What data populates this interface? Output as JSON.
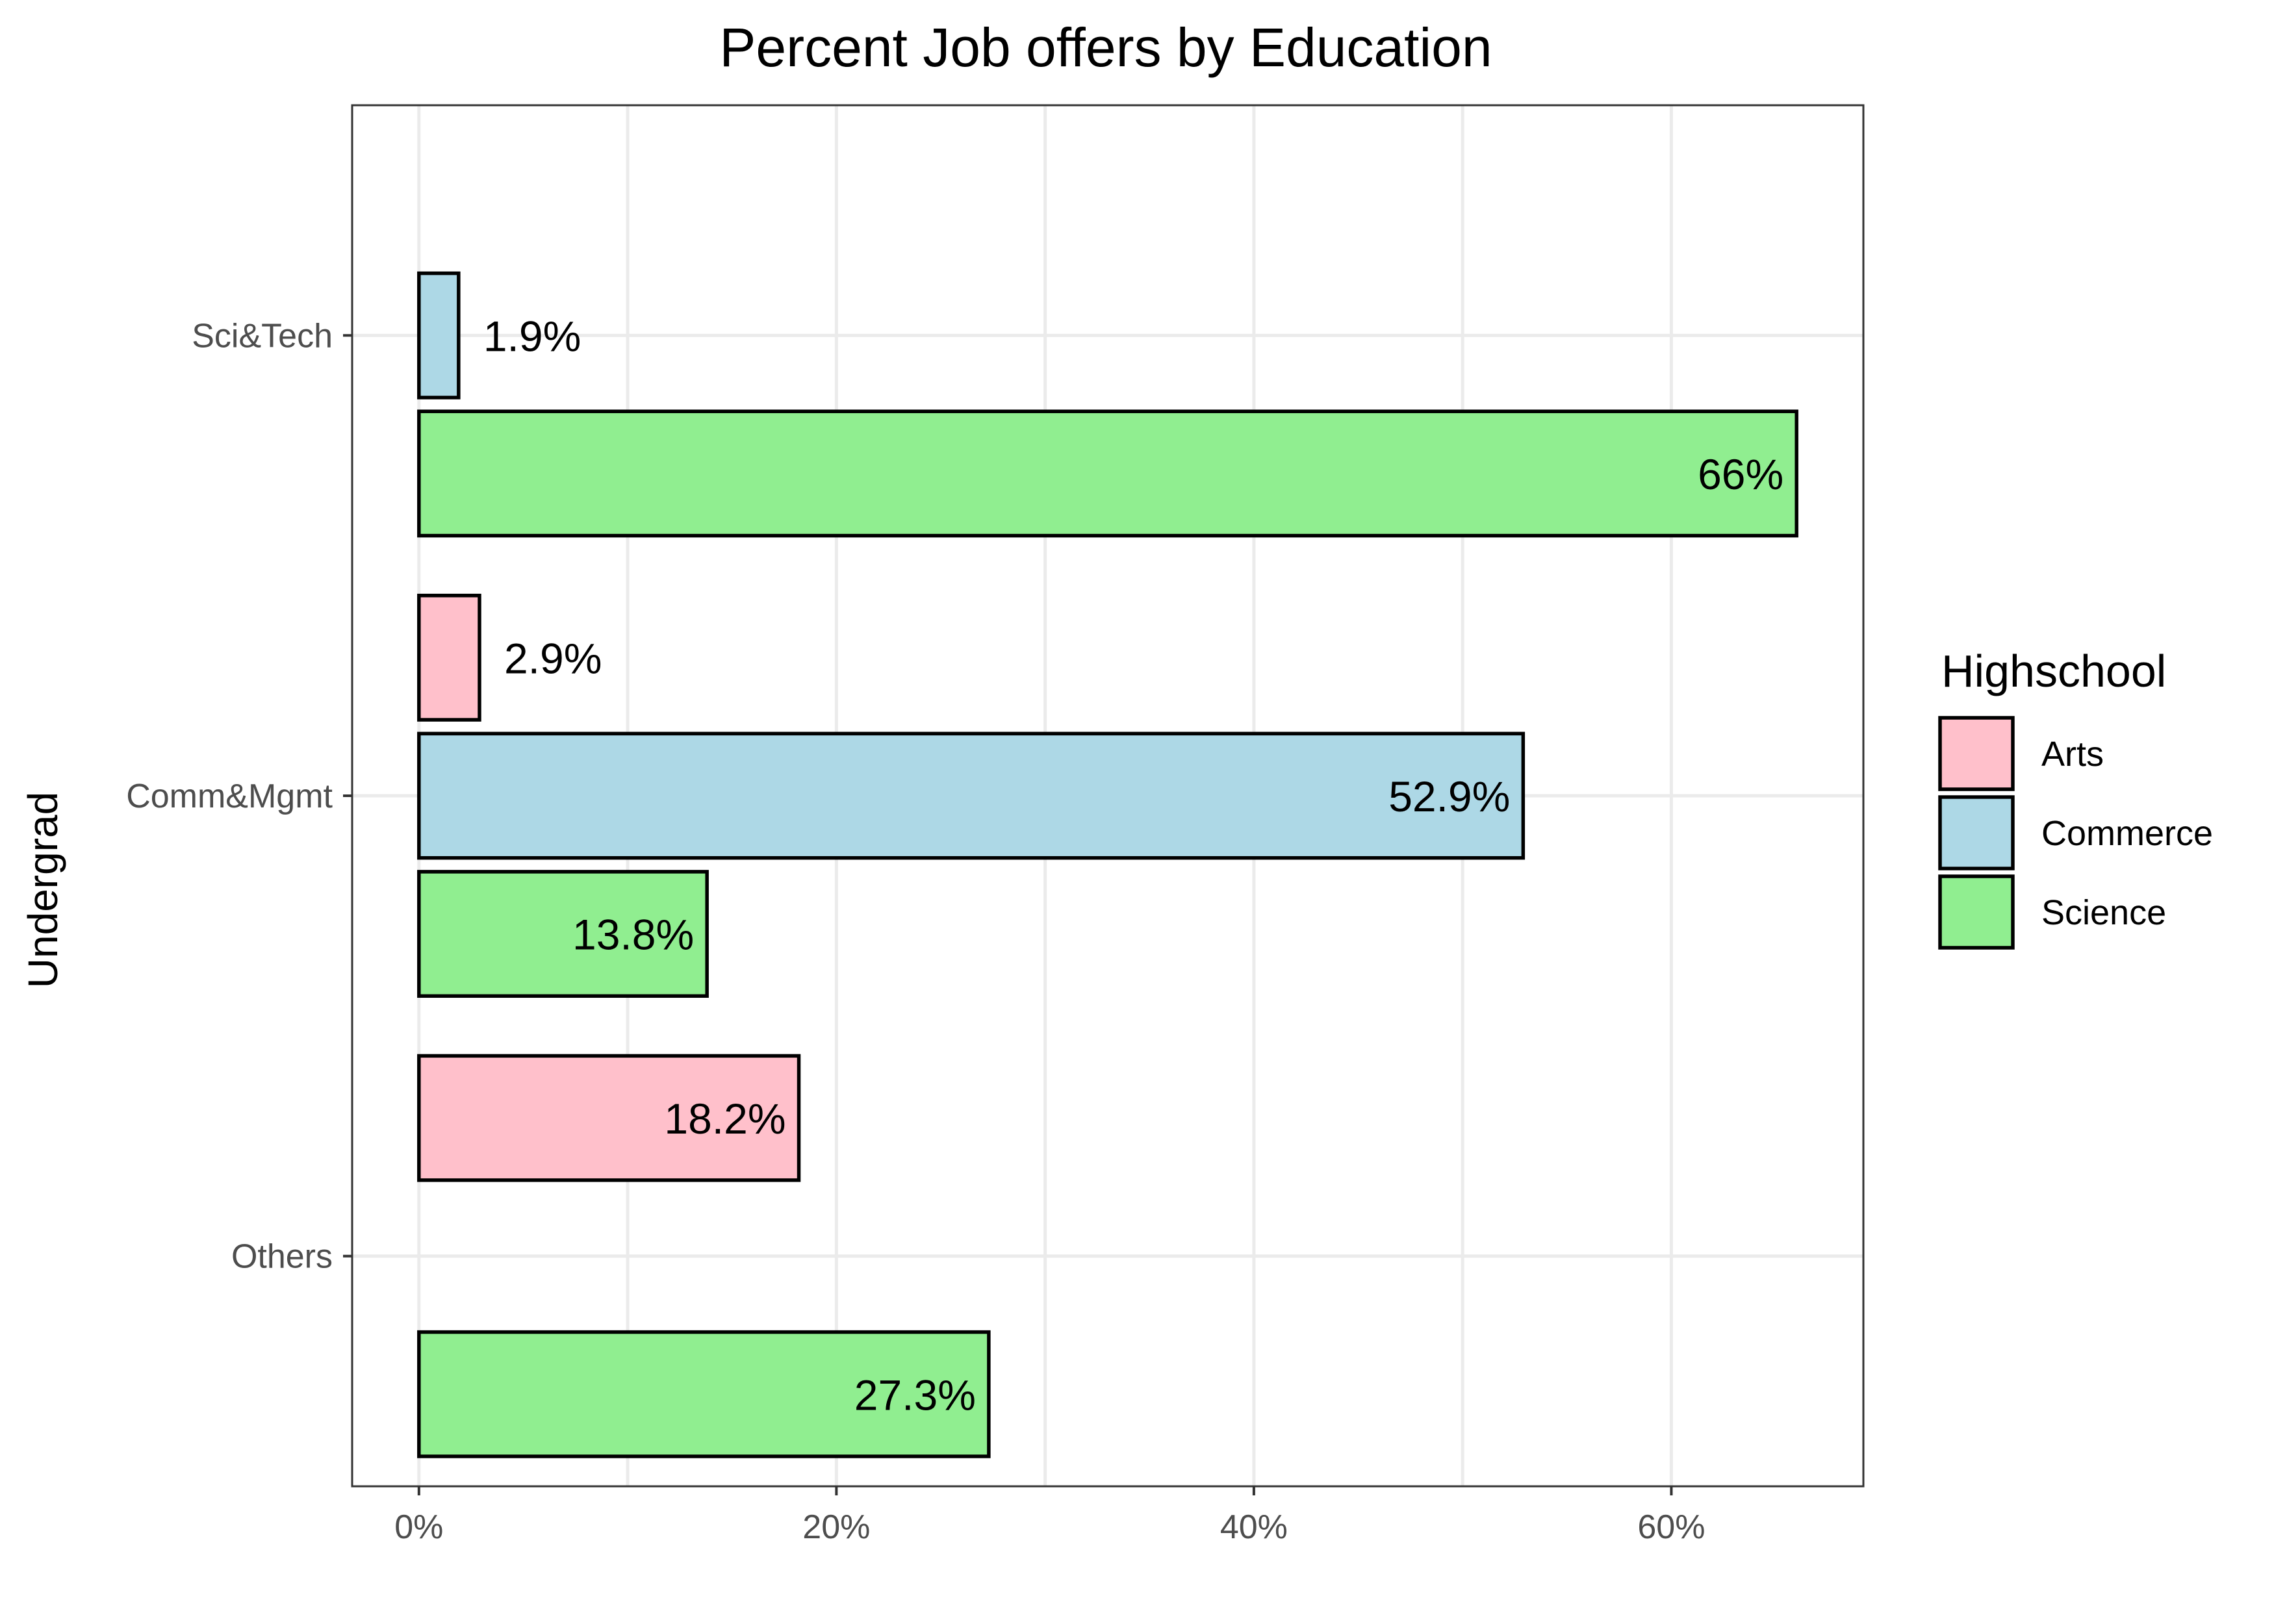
{
  "chart_data": {
    "type": "bar",
    "orientation": "horizontal",
    "title": "Percent Job offers by Education",
    "ylabel": "Undergrad",
    "xlabel": "",
    "categories": [
      "Sci&Tech",
      "Comm&Mgmt",
      "Others"
    ],
    "x_ticks": [
      "0%",
      "20%",
      "40%",
      "60%"
    ],
    "x_tick_values": [
      0,
      20,
      40,
      60
    ],
    "xlim": [
      -3.2,
      69.2
    ],
    "grid": true,
    "legend": {
      "title": "Highschool",
      "position": "right"
    },
    "series": [
      {
        "name": "Arts",
        "color": "#ffc0cb",
        "values": [
          null,
          2.9,
          18.2
        ],
        "labels": [
          "",
          "2.9%",
          "18.2%"
        ]
      },
      {
        "name": "Commerce",
        "color": "#add8e6",
        "values": [
          1.9,
          52.9,
          null
        ],
        "labels": [
          "1.9%",
          "52.9%",
          ""
        ]
      },
      {
        "name": "Science",
        "color": "#90ee90",
        "values": [
          66,
          13.8,
          27.3
        ],
        "labels": [
          "66%",
          "13.8%",
          "27.3%"
        ]
      }
    ]
  }
}
